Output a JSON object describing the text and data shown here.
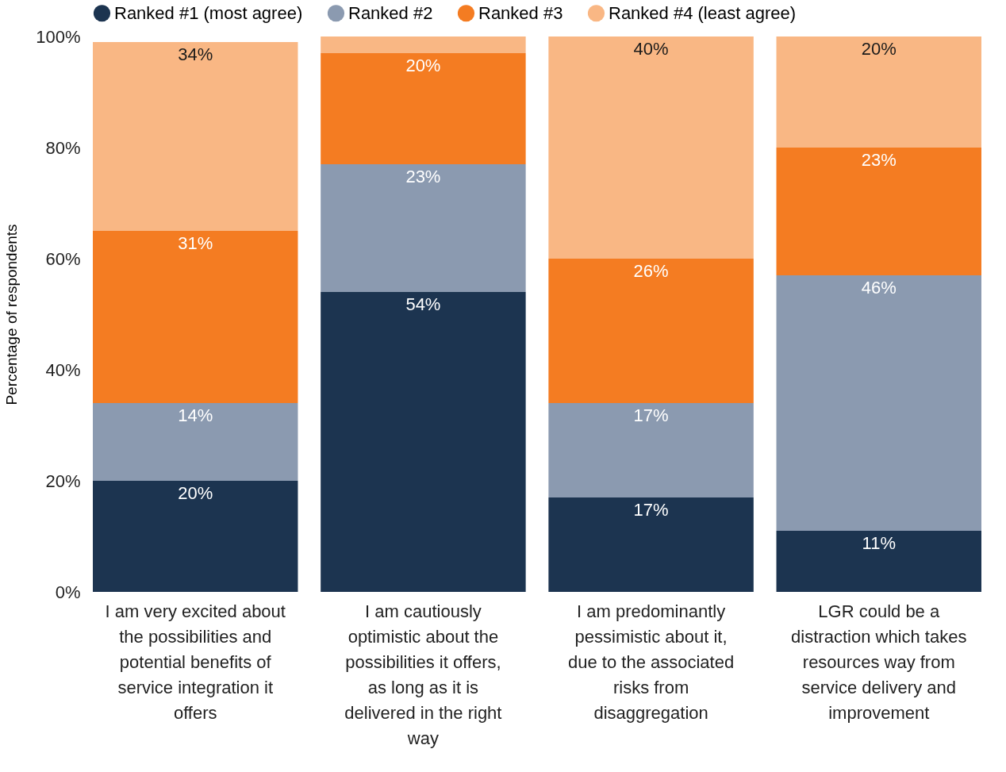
{
  "chart_data": {
    "type": "bar",
    "stacked": true,
    "ylabel": "Percentage of respondents",
    "categories": [
      "I am very excited about the possibilities and potential benefits of service integration it offers",
      "I am cautiously optimistic about the possibilities it offers, as long as it is delivered in the right way",
      "I am predominantly pessimistic about it, due to the associated risks from disaggregation",
      "LGR could be a distraction which takes resources way from service delivery and improvement"
    ],
    "series": [
      {
        "name": "Ranked #1 (most agree)",
        "color": "#1c3450",
        "values": [
          20,
          54,
          17,
          11
        ],
        "value_labels": [
          "20%",
          "54%",
          "17%",
          "11%"
        ]
      },
      {
        "name": "Ranked #2",
        "color": "#8b9ab0",
        "values": [
          14,
          23,
          17,
          46
        ],
        "value_labels": [
          "14%",
          "23%",
          "17%",
          "46%"
        ]
      },
      {
        "name": "Ranked #3",
        "color": "#f47c22",
        "values": [
          31,
          20,
          26,
          23
        ],
        "value_labels": [
          "31%",
          "20%",
          "26%",
          "23%"
        ]
      },
      {
        "name": "Ranked #4 (least agree)",
        "color": "#f9b784",
        "values": [
          34,
          3,
          40,
          20
        ],
        "value_labels": [
          "34%",
          null,
          "40%",
          "20%"
        ]
      }
    ],
    "ylim": [
      0,
      100
    ],
    "yticks": [
      {
        "value": 0,
        "label": "0%"
      },
      {
        "value": 20,
        "label": "20%"
      },
      {
        "value": 40,
        "label": "40%"
      },
      {
        "value": 60,
        "label": "60%"
      },
      {
        "value": 80,
        "label": "80%"
      },
      {
        "value": 100,
        "label": "100%"
      }
    ],
    "grid": false,
    "legend": "top"
  }
}
